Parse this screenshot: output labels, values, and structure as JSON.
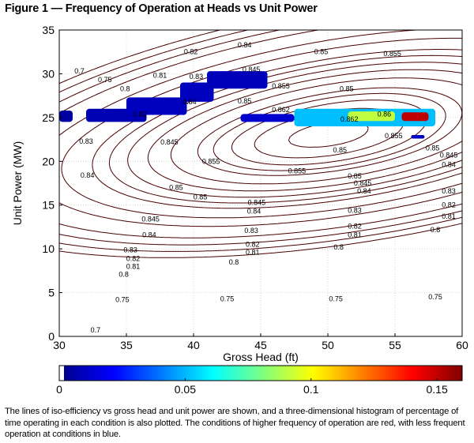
{
  "figure": {
    "title": "Figure 1 — Frequency of Operation at Heads vs Unit Power",
    "caption": "The lines of iso-efficiency vs gross head and unit power are shown, and a three-dimensional histogram of percentage of time operating in each condition is also plotted. The conditions of higher frequency of operation are red, with less frequent operation at conditions in blue."
  },
  "chart_data": {
    "type": "heatmap",
    "overlay": "contour",
    "xlabel": "Gross Head (ft)",
    "ylabel": "Unit Power (MW)",
    "xlim": [
      30,
      60
    ],
    "ylim": [
      0,
      35
    ],
    "xticks": [
      "30",
      "35",
      "40",
      "45",
      "50",
      "55",
      "60"
    ],
    "yticks": [
      "0",
      "5",
      "10",
      "15",
      "20",
      "25",
      "30",
      "35"
    ],
    "grid": true,
    "colorbar": {
      "range": [
        0,
        0.16
      ],
      "ticks": [
        "0",
        "0.05",
        "0.1",
        "0.15"
      ],
      "colormap": "jet"
    },
    "contour_labels": [
      {
        "text": "0.7",
        "x": 31.5,
        "y": 30.3
      },
      {
        "text": "0.75",
        "x": 33.4,
        "y": 29.3
      },
      {
        "text": "0.8",
        "x": 34.9,
        "y": 28.3
      },
      {
        "text": "0.81",
        "x": 37.5,
        "y": 29.8
      },
      {
        "text": "0.82",
        "x": 39.8,
        "y": 32.5
      },
      {
        "text": "0.83",
        "x": 40.2,
        "y": 29.7
      },
      {
        "text": "0.84",
        "x": 43.8,
        "y": 33.3
      },
      {
        "text": "0.845",
        "x": 44.3,
        "y": 30.5
      },
      {
        "text": "0.85",
        "x": 43.8,
        "y": 26.9
      },
      {
        "text": "0.855",
        "x": 46.5,
        "y": 28.6
      },
      {
        "text": "0.85",
        "x": 49.5,
        "y": 32.5
      },
      {
        "text": "0.855",
        "x": 54.8,
        "y": 32.3
      },
      {
        "text": "0.85",
        "x": 51.4,
        "y": 28.3
      },
      {
        "text": "0.84",
        "x": 39.7,
        "y": 26.8
      },
      {
        "text": "0.82",
        "x": 36.0,
        "y": 25.4
      },
      {
        "text": "0.83",
        "x": 32.0,
        "y": 22.3
      },
      {
        "text": "0.84",
        "x": 32.1,
        "y": 18.4
      },
      {
        "text": "0.845",
        "x": 38.2,
        "y": 22.2
      },
      {
        "text": "0.855",
        "x": 41.3,
        "y": 20.0
      },
      {
        "text": "0.85",
        "x": 38.7,
        "y": 17.0
      },
      {
        "text": "0.85",
        "x": 50.9,
        "y": 21.3
      },
      {
        "text": "0.855",
        "x": 47.7,
        "y": 18.9
      },
      {
        "text": "0.85",
        "x": 52.0,
        "y": 18.3
      },
      {
        "text": "0.855",
        "x": 54.9,
        "y": 22.9
      },
      {
        "text": "0.85",
        "x": 57.8,
        "y": 21.5
      },
      {
        "text": "0.845",
        "x": 59.0,
        "y": 20.7
      },
      {
        "text": "0.845",
        "x": 52.6,
        "y": 17.5
      },
      {
        "text": "0.84",
        "x": 59.0,
        "y": 19.6
      },
      {
        "text": "0.84",
        "x": 52.7,
        "y": 16.6
      },
      {
        "text": "0.85",
        "x": 40.5,
        "y": 15.9
      },
      {
        "text": "0.845",
        "x": 44.7,
        "y": 15.3
      },
      {
        "text": "0.84",
        "x": 44.5,
        "y": 14.3
      },
      {
        "text": "0.845",
        "x": 36.8,
        "y": 13.4
      },
      {
        "text": "0.84",
        "x": 36.7,
        "y": 11.6
      },
      {
        "text": "0.83",
        "x": 44.3,
        "y": 12.1
      },
      {
        "text": "0.83",
        "x": 52.0,
        "y": 14.4
      },
      {
        "text": "0.83",
        "x": 59.0,
        "y": 16.6
      },
      {
        "text": "0.82",
        "x": 59.0,
        "y": 15.0
      },
      {
        "text": "0.82",
        "x": 52.0,
        "y": 12.6
      },
      {
        "text": "0.82",
        "x": 44.4,
        "y": 10.5
      },
      {
        "text": "0.81",
        "x": 52.0,
        "y": 11.6
      },
      {
        "text": "0.81",
        "x": 59.0,
        "y": 13.7
      },
      {
        "text": "0.81",
        "x": 44.4,
        "y": 9.6
      },
      {
        "text": "0.8",
        "x": 58.0,
        "y": 12.2
      },
      {
        "text": "0.8",
        "x": 50.8,
        "y": 10.2
      },
      {
        "text": "0.8",
        "x": 43.0,
        "y": 8.5
      },
      {
        "text": "0.83",
        "x": 35.3,
        "y": 9.9
      },
      {
        "text": "0.82",
        "x": 35.5,
        "y": 8.9
      },
      {
        "text": "0.81",
        "x": 35.5,
        "y": 8.0
      },
      {
        "text": "0.8",
        "x": 34.8,
        "y": 7.1
      },
      {
        "text": "0.75",
        "x": 34.7,
        "y": 4.2
      },
      {
        "text": "0.75",
        "x": 42.5,
        "y": 4.3
      },
      {
        "text": "0.75",
        "x": 50.6,
        "y": 4.3
      },
      {
        "text": "0.75",
        "x": 58.0,
        "y": 4.5
      },
      {
        "text": "0.7",
        "x": 32.7,
        "y": 0.7
      },
      {
        "text": "0.862",
        "x": 51.6,
        "y": 24.8
      },
      {
        "text": "0.862",
        "x": 46.5,
        "y": 25.9
      },
      {
        "text": "0.86",
        "x": 54.2,
        "y": 25.4
      }
    ],
    "histogram_regions": [
      {
        "x": [
          30.0,
          31.0
        ],
        "y": [
          24.5,
          25.8
        ],
        "value": 0.005
      },
      {
        "x": [
          32.0,
          36.5
        ],
        "y": [
          24.5,
          26.0
        ],
        "value": 0.008
      },
      {
        "x": [
          35.0,
          39.5
        ],
        "y": [
          25.3,
          27.3
        ],
        "value": 0.01
      },
      {
        "x": [
          39.0,
          41.5
        ],
        "y": [
          26.8,
          29.0
        ],
        "value": 0.01
      },
      {
        "x": [
          41.0,
          45.5
        ],
        "y": [
          28.3,
          30.3
        ],
        "value": 0.009
      },
      {
        "x": [
          43.5,
          47.5
        ],
        "y": [
          24.5,
          25.4
        ],
        "value": 0.012
      },
      {
        "x": [
          47.5,
          58.0
        ],
        "y": [
          24.0,
          26.0
        ],
        "value": 0.05
      },
      {
        "x": [
          51.5,
          55.0
        ],
        "y": [
          24.6,
          25.7
        ],
        "value": 0.09
      },
      {
        "x": [
          55.5,
          57.5
        ],
        "y": [
          24.6,
          25.6
        ],
        "value": 0.15
      },
      {
        "x": [
          56.2,
          57.2
        ],
        "y": [
          22.6,
          23.0
        ],
        "value": 0.01
      }
    ]
  }
}
